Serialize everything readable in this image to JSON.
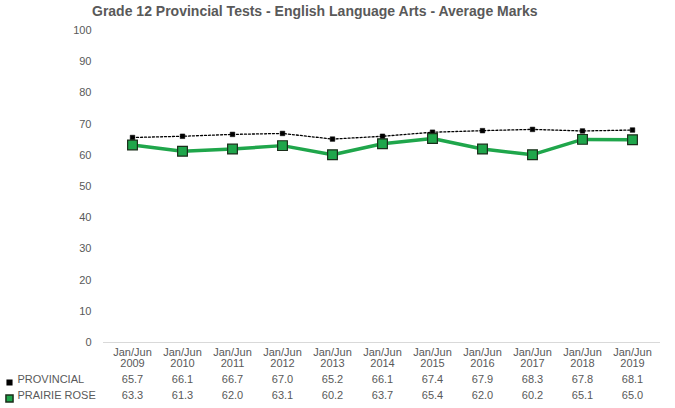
{
  "chart_data": {
    "type": "line",
    "title": "Grade 12 Provincial Tests - English Language Arts - Average Marks",
    "categories": [
      "Jan/Jun\n2009",
      "Jan/Jun\n2010",
      "Jan/Jun\n2011",
      "Jan/Jun\n2012",
      "Jan/Jun\n2013",
      "Jan/Jun\n2014",
      "Jan/Jun\n2015",
      "Jan/Jun\n2016",
      "Jan/Jun\n2017",
      "Jan/Jun\n2018",
      "Jan/Jun\n2019"
    ],
    "series": [
      {
        "name": "PROVINCIAL",
        "color": "#000000",
        "marker": "square",
        "line_style": "dotted",
        "values": [
          65.7,
          66.1,
          66.7,
          67.0,
          65.2,
          66.1,
          67.4,
          67.9,
          68.3,
          67.8,
          68.1
        ],
        "value_labels": [
          "65.7",
          "66.1",
          "66.7",
          "67.0",
          "65.2",
          "66.1",
          "67.4",
          "67.9",
          "68.3",
          "67.8",
          "68.1"
        ]
      },
      {
        "name": "PRAIRIE ROSE",
        "color": "#1fa64b",
        "marker": "square",
        "line_style": "solid",
        "values": [
          63.3,
          61.3,
          62.0,
          63.1,
          60.2,
          63.7,
          65.4,
          62.0,
          60.2,
          65.1,
          65.0
        ],
        "value_labels": [
          "63.3",
          "61.3",
          "62.0",
          "63.1",
          "60.2",
          "63.7",
          "65.4",
          "62.0",
          "60.2",
          "65.1",
          "65.0"
        ]
      }
    ],
    "ylim": [
      0,
      100
    ],
    "yticks": [
      0,
      10,
      20,
      30,
      40,
      50,
      60,
      70,
      80,
      90,
      100
    ],
    "grid": false
  }
}
